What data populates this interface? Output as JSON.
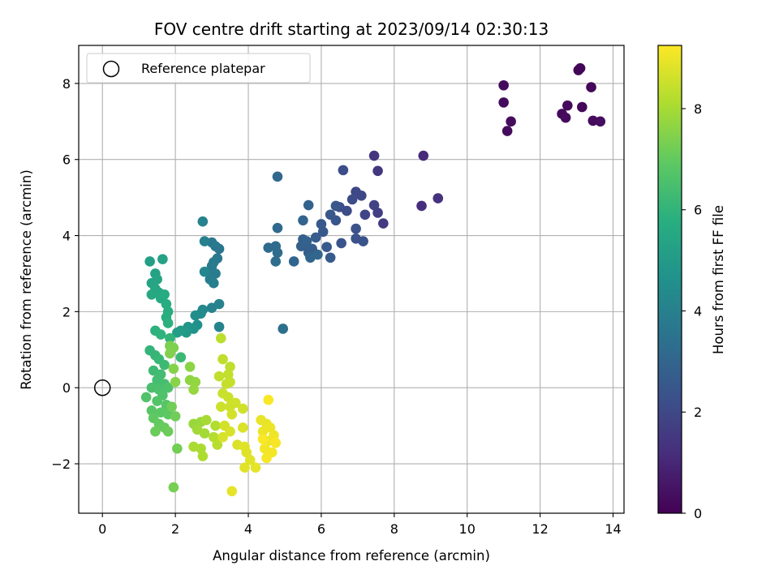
{
  "chart_data": {
    "type": "scatter",
    "title": "FOV centre drift starting at 2023/09/14 02:30:13",
    "xlabel": "Angular distance from reference (arcmin)",
    "ylabel": "Rotation from reference (arcmin)",
    "xlim": [
      -0.65,
      14.3
    ],
    "ylim": [
      -3.3,
      9.0
    ],
    "xticks": [
      0,
      2,
      4,
      6,
      8,
      10,
      12,
      14
    ],
    "yticks": [
      -2,
      0,
      2,
      4,
      6,
      8
    ],
    "grid": true,
    "legend": {
      "placement": "top-left",
      "entries": [
        {
          "label": "Reference platepar",
          "marker": "open-circle"
        }
      ]
    },
    "reference_point": {
      "x": 0,
      "y": 0
    },
    "colorbar": {
      "label": "Hours from first FF file",
      "range": [
        0,
        9.25
      ],
      "ticks": [
        0,
        2,
        4,
        6,
        8
      ],
      "colormap": "viridis"
    },
    "points": [
      {
        "x": 11.0,
        "y": 7.95,
        "c": 0.2
      },
      {
        "x": 11.0,
        "y": 7.5,
        "c": 0.25
      },
      {
        "x": 11.1,
        "y": 6.75,
        "c": 0.3
      },
      {
        "x": 11.2,
        "y": 7.0,
        "c": 0.3
      },
      {
        "x": 13.05,
        "y": 8.35,
        "c": 0.1
      },
      {
        "x": 13.1,
        "y": 8.4,
        "c": 0.12
      },
      {
        "x": 13.4,
        "y": 7.9,
        "c": 0.15
      },
      {
        "x": 13.15,
        "y": 7.38,
        "c": 0.15
      },
      {
        "x": 12.75,
        "y": 7.42,
        "c": 0.2
      },
      {
        "x": 12.6,
        "y": 7.2,
        "c": 0.22
      },
      {
        "x": 12.7,
        "y": 7.1,
        "c": 0.25
      },
      {
        "x": 13.45,
        "y": 7.02,
        "c": 0.3
      },
      {
        "x": 13.65,
        "y": 7.0,
        "c": 0.35
      },
      {
        "x": 8.8,
        "y": 6.1,
        "c": 1.1
      },
      {
        "x": 8.75,
        "y": 4.78,
        "c": 1.2
      },
      {
        "x": 9.2,
        "y": 4.98,
        "c": 1.3
      },
      {
        "x": 7.45,
        "y": 6.1,
        "c": 1.4
      },
      {
        "x": 7.55,
        "y": 5.7,
        "c": 1.5
      },
      {
        "x": 7.7,
        "y": 4.32,
        "c": 1.6
      },
      {
        "x": 7.55,
        "y": 4.6,
        "c": 1.7
      },
      {
        "x": 7.45,
        "y": 4.8,
        "c": 1.8
      },
      {
        "x": 7.2,
        "y": 4.55,
        "c": 1.9
      },
      {
        "x": 7.1,
        "y": 5.05,
        "c": 2.0
      },
      {
        "x": 6.95,
        "y": 5.15,
        "c": 2.0
      },
      {
        "x": 6.85,
        "y": 4.95,
        "c": 2.1
      },
      {
        "x": 6.7,
        "y": 4.65,
        "c": 2.1
      },
      {
        "x": 6.6,
        "y": 5.72,
        "c": 2.2
      },
      {
        "x": 6.5,
        "y": 4.75,
        "c": 2.2
      },
      {
        "x": 6.95,
        "y": 4.18,
        "c": 2.3
      },
      {
        "x": 6.95,
        "y": 3.92,
        "c": 2.3
      },
      {
        "x": 7.15,
        "y": 3.85,
        "c": 2.35
      },
      {
        "x": 6.55,
        "y": 3.8,
        "c": 2.4
      },
      {
        "x": 6.4,
        "y": 4.4,
        "c": 2.45
      },
      {
        "x": 6.4,
        "y": 4.78,
        "c": 2.5
      },
      {
        "x": 6.25,
        "y": 4.55,
        "c": 2.5
      },
      {
        "x": 6.0,
        "y": 4.3,
        "c": 2.55
      },
      {
        "x": 6.05,
        "y": 4.1,
        "c": 2.6
      },
      {
        "x": 6.15,
        "y": 3.7,
        "c": 2.6
      },
      {
        "x": 6.25,
        "y": 3.42,
        "c": 2.65
      },
      {
        "x": 5.85,
        "y": 3.95,
        "c": 2.7
      },
      {
        "x": 5.75,
        "y": 3.65,
        "c": 2.7
      },
      {
        "x": 5.65,
        "y": 3.55,
        "c": 2.75
      },
      {
        "x": 5.55,
        "y": 3.75,
        "c": 2.8
      },
      {
        "x": 5.5,
        "y": 3.9,
        "c": 2.8
      },
      {
        "x": 5.45,
        "y": 3.72,
        "c": 2.85
      },
      {
        "x": 5.6,
        "y": 3.85,
        "c": 2.9
      },
      {
        "x": 5.65,
        "y": 4.8,
        "c": 2.9
      },
      {
        "x": 5.5,
        "y": 4.4,
        "c": 2.95
      },
      {
        "x": 5.25,
        "y": 3.32,
        "c": 3.0
      },
      {
        "x": 5.7,
        "y": 3.42,
        "c": 3.0
      },
      {
        "x": 5.9,
        "y": 3.5,
        "c": 3.05
      },
      {
        "x": 4.8,
        "y": 5.55,
        "c": 3.1
      },
      {
        "x": 4.8,
        "y": 4.2,
        "c": 3.15
      },
      {
        "x": 4.55,
        "y": 3.68,
        "c": 3.2
      },
      {
        "x": 4.75,
        "y": 3.72,
        "c": 3.2
      },
      {
        "x": 4.8,
        "y": 3.55,
        "c": 3.25
      },
      {
        "x": 4.75,
        "y": 3.32,
        "c": 3.3
      },
      {
        "x": 4.95,
        "y": 1.55,
        "c": 3.35
      },
      {
        "x": 3.2,
        "y": 3.65,
        "c": 3.6
      },
      {
        "x": 3.1,
        "y": 3.72,
        "c": 3.65
      },
      {
        "x": 3.0,
        "y": 3.82,
        "c": 3.7
      },
      {
        "x": 3.15,
        "y": 3.4,
        "c": 3.7
      },
      {
        "x": 3.05,
        "y": 3.3,
        "c": 3.75
      },
      {
        "x": 3.0,
        "y": 3.2,
        "c": 3.8
      },
      {
        "x": 2.95,
        "y": 3.05,
        "c": 3.8
      },
      {
        "x": 3.1,
        "y": 3.0,
        "c": 3.85
      },
      {
        "x": 2.95,
        "y": 2.85,
        "c": 3.9
      },
      {
        "x": 3.05,
        "y": 2.75,
        "c": 3.95
      },
      {
        "x": 2.8,
        "y": 3.85,
        "c": 4.0
      },
      {
        "x": 2.75,
        "y": 4.37,
        "c": 4.05
      },
      {
        "x": 3.2,
        "y": 2.2,
        "c": 4.1
      },
      {
        "x": 3.0,
        "y": 2.1,
        "c": 4.1
      },
      {
        "x": 3.2,
        "y": 1.6,
        "c": 4.15
      },
      {
        "x": 2.8,
        "y": 3.05,
        "c": 4.2
      },
      {
        "x": 2.75,
        "y": 2.05,
        "c": 4.3
      },
      {
        "x": 2.7,
        "y": 1.95,
        "c": 4.4
      },
      {
        "x": 2.55,
        "y": 1.9,
        "c": 4.5
      },
      {
        "x": 2.6,
        "y": 1.65,
        "c": 4.6
      },
      {
        "x": 2.5,
        "y": 1.55,
        "c": 4.7
      },
      {
        "x": 2.35,
        "y": 1.6,
        "c": 4.8
      },
      {
        "x": 2.3,
        "y": 1.45,
        "c": 4.9
      },
      {
        "x": 2.15,
        "y": 1.5,
        "c": 5.0
      },
      {
        "x": 2.05,
        "y": 1.45,
        "c": 5.1
      },
      {
        "x": 1.3,
        "y": 3.32,
        "c": 5.2
      },
      {
        "x": 1.65,
        "y": 3.38,
        "c": 5.25
      },
      {
        "x": 1.45,
        "y": 3.0,
        "c": 5.3
      },
      {
        "x": 1.5,
        "y": 2.85,
        "c": 5.35
      },
      {
        "x": 1.35,
        "y": 2.75,
        "c": 5.4
      },
      {
        "x": 1.45,
        "y": 2.6,
        "c": 5.45
      },
      {
        "x": 1.55,
        "y": 2.5,
        "c": 5.5
      },
      {
        "x": 1.35,
        "y": 2.45,
        "c": 5.55
      },
      {
        "x": 1.6,
        "y": 2.35,
        "c": 5.6
      },
      {
        "x": 1.7,
        "y": 2.45,
        "c": 5.65
      },
      {
        "x": 1.75,
        "y": 2.2,
        "c": 5.7
      },
      {
        "x": 1.8,
        "y": 2.0,
        "c": 5.75
      },
      {
        "x": 1.75,
        "y": 1.85,
        "c": 5.8
      },
      {
        "x": 1.8,
        "y": 1.7,
        "c": 5.85
      },
      {
        "x": 1.45,
        "y": 1.5,
        "c": 5.9
      },
      {
        "x": 1.6,
        "y": 1.4,
        "c": 5.95
      },
      {
        "x": 1.85,
        "y": 1.3,
        "c": 6.0
      },
      {
        "x": 1.3,
        "y": 0.98,
        "c": 6.05
      },
      {
        "x": 1.45,
        "y": 0.85,
        "c": 6.1
      },
      {
        "x": 1.55,
        "y": 0.75,
        "c": 6.15
      },
      {
        "x": 2.15,
        "y": 0.8,
        "c": 6.2
      },
      {
        "x": 1.7,
        "y": 0.6,
        "c": 6.25
      },
      {
        "x": 1.4,
        "y": 0.45,
        "c": 6.3
      },
      {
        "x": 1.6,
        "y": 0.35,
        "c": 6.35
      },
      {
        "x": 1.5,
        "y": 0.2,
        "c": 6.4
      },
      {
        "x": 1.7,
        "y": 0.1,
        "c": 6.45
      },
      {
        "x": 1.35,
        "y": 0.0,
        "c": 6.5
      },
      {
        "x": 1.55,
        "y": -0.05,
        "c": 6.55
      },
      {
        "x": 1.8,
        "y": 0.0,
        "c": 6.6
      },
      {
        "x": 1.65,
        "y": -0.2,
        "c": 6.6
      },
      {
        "x": 1.2,
        "y": -0.25,
        "c": 6.65
      },
      {
        "x": 1.5,
        "y": -0.35,
        "c": 6.7
      },
      {
        "x": 1.75,
        "y": -0.45,
        "c": 6.75
      },
      {
        "x": 1.35,
        "y": -0.6,
        "c": 6.8
      },
      {
        "x": 1.6,
        "y": -0.65,
        "c": 6.85
      },
      {
        "x": 1.8,
        "y": -0.7,
        "c": 6.9
      },
      {
        "x": 1.4,
        "y": -0.8,
        "c": 6.95
      },
      {
        "x": 1.55,
        "y": -0.95,
        "c": 7.0
      },
      {
        "x": 1.7,
        "y": -1.05,
        "c": 7.05
      },
      {
        "x": 1.45,
        "y": -1.15,
        "c": 7.1
      },
      {
        "x": 1.8,
        "y": -1.15,
        "c": 7.15
      },
      {
        "x": 2.0,
        "y": -0.75,
        "c": 7.2
      },
      {
        "x": 1.9,
        "y": -0.5,
        "c": 7.2
      },
      {
        "x": 2.05,
        "y": -1.6,
        "c": 7.25
      },
      {
        "x": 1.95,
        "y": -2.62,
        "c": 7.3
      },
      {
        "x": 1.85,
        "y": 1.1,
        "c": 7.35
      },
      {
        "x": 1.95,
        "y": 1.05,
        "c": 7.4
      },
      {
        "x": 1.85,
        "y": 0.9,
        "c": 7.45
      },
      {
        "x": 1.95,
        "y": 0.5,
        "c": 7.5
      },
      {
        "x": 2.0,
        "y": 0.15,
        "c": 7.55
      },
      {
        "x": 2.4,
        "y": 0.55,
        "c": 7.6
      },
      {
        "x": 2.4,
        "y": 0.2,
        "c": 7.65
      },
      {
        "x": 2.55,
        "y": 0.15,
        "c": 7.7
      },
      {
        "x": 2.5,
        "y": -0.05,
        "c": 7.75
      },
      {
        "x": 2.5,
        "y": -0.95,
        "c": 7.8
      },
      {
        "x": 2.7,
        "y": -0.9,
        "c": 7.85
      },
      {
        "x": 2.6,
        "y": -1.1,
        "c": 7.9
      },
      {
        "x": 2.8,
        "y": -1.2,
        "c": 7.95
      },
      {
        "x": 2.85,
        "y": -0.85,
        "c": 8.0
      },
      {
        "x": 2.5,
        "y": -1.55,
        "c": 8.05
      },
      {
        "x": 2.7,
        "y": -1.6,
        "c": 8.05
      },
      {
        "x": 2.75,
        "y": -1.8,
        "c": 8.1
      },
      {
        "x": 3.1,
        "y": -1.0,
        "c": 8.15
      },
      {
        "x": 3.05,
        "y": -1.3,
        "c": 8.2
      },
      {
        "x": 3.15,
        "y": -1.5,
        "c": 8.25
      },
      {
        "x": 3.25,
        "y": 1.3,
        "c": 8.3
      },
      {
        "x": 3.3,
        "y": 0.75,
        "c": 8.35
      },
      {
        "x": 3.5,
        "y": 0.55,
        "c": 8.35
      },
      {
        "x": 3.45,
        "y": 0.35,
        "c": 8.4
      },
      {
        "x": 3.2,
        "y": 0.3,
        "c": 8.4
      },
      {
        "x": 3.4,
        "y": 0.1,
        "c": 8.45
      },
      {
        "x": 3.5,
        "y": 0.15,
        "c": 8.45
      },
      {
        "x": 3.3,
        "y": -0.15,
        "c": 8.5
      },
      {
        "x": 3.45,
        "y": -0.25,
        "c": 8.5
      },
      {
        "x": 3.25,
        "y": -0.5,
        "c": 8.55
      },
      {
        "x": 3.5,
        "y": -0.5,
        "c": 8.55
      },
      {
        "x": 3.65,
        "y": -0.4,
        "c": 8.6
      },
      {
        "x": 3.85,
        "y": -0.55,
        "c": 8.6
      },
      {
        "x": 3.55,
        "y": -0.7,
        "c": 8.65
      },
      {
        "x": 3.35,
        "y": -1.0,
        "c": 8.65
      },
      {
        "x": 3.3,
        "y": -1.3,
        "c": 8.7
      },
      {
        "x": 3.5,
        "y": -1.15,
        "c": 8.7
      },
      {
        "x": 3.7,
        "y": -1.5,
        "c": 8.75
      },
      {
        "x": 3.85,
        "y": -1.05,
        "c": 8.75
      },
      {
        "x": 3.9,
        "y": -1.55,
        "c": 8.8
      },
      {
        "x": 3.95,
        "y": -1.7,
        "c": 8.8
      },
      {
        "x": 3.9,
        "y": -2.1,
        "c": 8.85
      },
      {
        "x": 4.05,
        "y": -1.9,
        "c": 8.85
      },
      {
        "x": 4.2,
        "y": -2.1,
        "c": 8.9
      },
      {
        "x": 3.55,
        "y": -2.72,
        "c": 8.9
      },
      {
        "x": 4.35,
        "y": -0.85,
        "c": 8.95
      },
      {
        "x": 4.5,
        "y": -0.95,
        "c": 8.95
      },
      {
        "x": 4.4,
        "y": -1.15,
        "c": 9.0
      },
      {
        "x": 4.6,
        "y": -1.05,
        "c": 9.0
      },
      {
        "x": 4.7,
        "y": -1.25,
        "c": 9.05
      },
      {
        "x": 4.55,
        "y": -1.4,
        "c": 9.05
      },
      {
        "x": 4.45,
        "y": -1.6,
        "c": 9.1
      },
      {
        "x": 4.65,
        "y": -1.7,
        "c": 9.1
      },
      {
        "x": 4.5,
        "y": -1.85,
        "c": 9.15
      },
      {
        "x": 4.75,
        "y": -1.45,
        "c": 9.15
      },
      {
        "x": 4.55,
        "y": -0.32,
        "c": 9.2
      },
      {
        "x": 4.4,
        "y": -1.35,
        "c": 9.2
      }
    ]
  }
}
